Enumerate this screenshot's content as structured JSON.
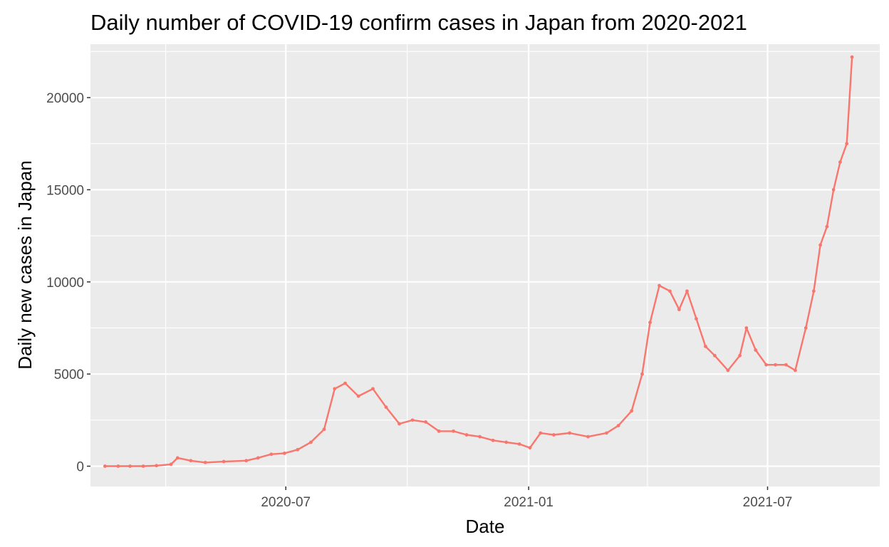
{
  "chart_data": {
    "type": "line",
    "title": "Daily number of COVID-19 confirm cases in Japan from 2020-2021",
    "xlabel": "Date",
    "ylabel": "Daily new cases in Japan",
    "x_tick_labels": [
      "2020-07",
      "2021-01",
      "2021-07"
    ],
    "y_tick_labels": [
      "0",
      "5000",
      "10000",
      "15000",
      "20000"
    ],
    "ylim": [
      -1100,
      22900
    ],
    "xlim": [
      "2020-02-04",
      "2021-09-24"
    ],
    "grid": true,
    "legend": "none",
    "colors": {
      "series": "#F8766D",
      "panel": "#EBEBEB",
      "grid": "#FFFFFF"
    },
    "series": [
      {
        "x": [
          "2020-02-15",
          "2020-02-25",
          "2020-03-05",
          "2020-03-15",
          "2020-03-25",
          "2020-04-05",
          "2020-04-10",
          "2020-04-20",
          "2020-05-01",
          "2020-05-15",
          "2020-06-01",
          "2020-06-10",
          "2020-06-20",
          "2020-06-30",
          "2020-07-10",
          "2020-07-20",
          "2020-07-30",
          "2020-08-07",
          "2020-08-15",
          "2020-08-25",
          "2020-09-05",
          "2020-09-15",
          "2020-09-25",
          "2020-10-05",
          "2020-10-15",
          "2020-10-25",
          "2020-11-05",
          "2020-11-15",
          "2020-11-25",
          "2020-12-05",
          "2020-12-15",
          "2020-12-25",
          "2021-01-02",
          "2021-01-10",
          "2021-01-20",
          "2021-02-01",
          "2021-02-15",
          "2021-03-01",
          "2021-03-10",
          "2021-03-20",
          "2021-03-28",
          "2021-04-03",
          "2021-04-10",
          "2021-04-18",
          "2021-04-25",
          "2021-05-01",
          "2021-05-08",
          "2021-05-15",
          "2021-05-22",
          "2021-06-01",
          "2021-06-10",
          "2021-06-15",
          "2021-06-22",
          "2021-06-30",
          "2021-07-07",
          "2021-07-15",
          "2021-07-22",
          "2021-07-30",
          "2021-08-05",
          "2021-08-10",
          "2021-08-15",
          "2021-08-20",
          "2021-08-25",
          "2021-08-30",
          "2021-09-03"
        ],
        "values": [
          0,
          0,
          0,
          0,
          30,
          100,
          450,
          300,
          200,
          250,
          300,
          450,
          650,
          700,
          900,
          1300,
          2000,
          4200,
          4500,
          3800,
          4200,
          3200,
          2300,
          2500,
          2400,
          1900,
          1900,
          1700,
          1600,
          1400,
          1300,
          1200,
          1000,
          1800,
          1700,
          1800,
          1600,
          1800,
          2200,
          3000,
          5000,
          7800,
          9800,
          9500,
          8500,
          9500,
          8000,
          6500,
          6000,
          5200,
          6000,
          7500,
          6300,
          5500,
          5500,
          5500,
          5200,
          7500,
          9500,
          12000,
          13000,
          15000,
          16500,
          17500,
          22200
        ]
      }
    ]
  }
}
